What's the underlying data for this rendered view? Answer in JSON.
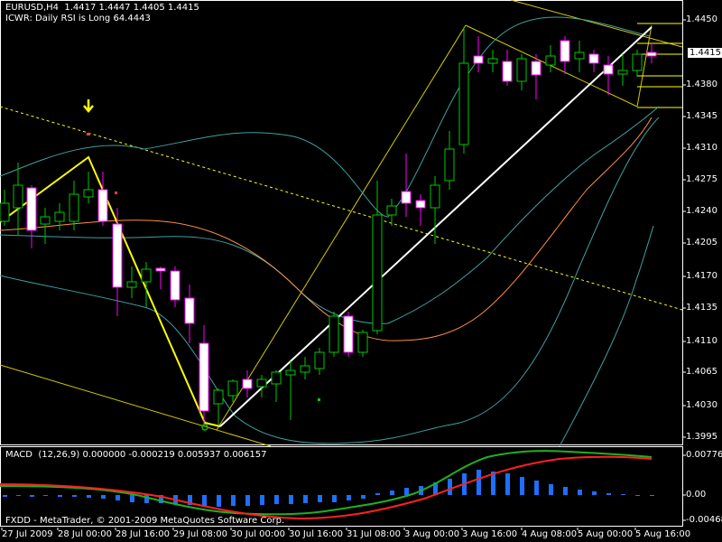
{
  "chart": {
    "symbol_line": "EURUSD,H4  1.4417 1.4447 1.4405 1.4415",
    "indicator_line": "ICWR: Daily RSI is Long 64.4443",
    "current_price": "1.4415",
    "price_axis": [
      "1.4450",
      "1.4380",
      "1.4345",
      "1.4310",
      "1.4275",
      "1.4240",
      "1.4205",
      "1.4170",
      "1.4135",
      "1.4110",
      "1.4065",
      "1.4030",
      "1.3995"
    ],
    "time_axis": [
      "27 Jul 2009",
      "28 Jul 00:00",
      "28 Jul 16:00",
      "29 Jul 08:00",
      "30 Jul 00:00",
      "30 Jul 16:00",
      "31 Jul 08:00",
      "3 Aug 00:00",
      "3 Aug 16:00",
      "4 Aug 08:00",
      "5 Aug 00:00",
      "5 Aug 16:00"
    ],
    "arrow_marker": "down-arrow-icon",
    "colors": {
      "background": "#000000",
      "bull_candle": "#00c800",
      "bear_candle": "#ffffff",
      "bear_candle_border": "#ff00ff",
      "zigzag": "#ffff00",
      "channel": "#ffff00",
      "bollinger": "#3fa0a0",
      "moving_average": "#ff9040",
      "trend_line": "#ffffff",
      "macd_hist": "#1e6fff",
      "macd_signal_green": "#20b020",
      "macd_signal_red": "#ff2020",
      "arrow": "#ffff00"
    }
  },
  "macd": {
    "label": "MACD  (12,26,9) 0.000000 -0.000219 0.005937 0.006157",
    "axis": [
      "0.007769",
      "0.00",
      "-0.004687"
    ]
  },
  "footer": {
    "copyright": "FXDD - MetaTrader, © 2001-2009 MetaQuotes Software Corp."
  }
}
